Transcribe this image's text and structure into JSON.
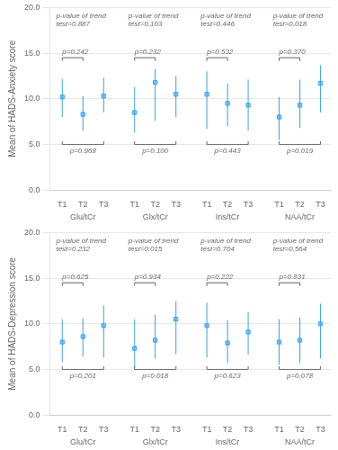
{
  "chart_data": [
    {
      "type": "scatter",
      "ylabel": "Mean of HADS-Anxiety score",
      "ylim": [
        0.0,
        20.0
      ],
      "yticks": [
        {
          "value": 0.0,
          "label": "0.0"
        },
        {
          "value": 5.0,
          "label": "5.0"
        },
        {
          "value": 10.0,
          "label": "10.0"
        },
        {
          "value": 15.0,
          "label": "15.0"
        },
        {
          "value": 20.0,
          "label": "20.0"
        }
      ],
      "grid": true,
      "marker": "square",
      "groups": [
        {
          "label": "Glu/tCr",
          "trend_text": "p-value of trend\ntest=0.887",
          "pval_top": "p=0.242",
          "pval_bottom": "p=0.968",
          "categories": [
            "T1",
            "T2",
            "T3"
          ],
          "values": [
            10.2,
            8.3,
            10.3
          ],
          "yerr_lo": [
            2.2,
            1.8,
            1.8
          ],
          "yerr_hi": [
            2.0,
            2.0,
            2.0
          ]
        },
        {
          "label": "Glx/tCr",
          "trend_text": "p-value of trend\ntest=0.103",
          "pval_top": "p=0.232",
          "pval_bottom": "p=0.100",
          "categories": [
            "T1",
            "T2",
            "T3"
          ],
          "values": [
            8.5,
            11.8,
            10.5
          ],
          "yerr_lo": [
            2.2,
            4.2,
            2.5
          ],
          "yerr_hi": [
            2.8,
            1.5,
            2.0
          ]
        },
        {
          "label": "Ins/tCr",
          "trend_text": "p-value of trend\ntest=0.446",
          "pval_top": "p=0.532",
          "pval_bottom": "p=0.443",
          "categories": [
            "T1",
            "T2",
            "T3"
          ],
          "values": [
            10.5,
            9.5,
            9.3
          ],
          "yerr_lo": [
            3.8,
            2.5,
            2.8
          ],
          "yerr_hi": [
            2.5,
            2.2,
            2.8
          ]
        },
        {
          "label": "NAA/tCr",
          "trend_text": "p-value of trend\ntest=0.018",
          "pval_top": "p=0.370",
          "pval_bottom": "p=0.019",
          "categories": [
            "T1",
            "T2",
            "T3"
          ],
          "values": [
            8.0,
            9.3,
            11.7
          ],
          "yerr_lo": [
            2.5,
            2.5,
            3.2
          ],
          "yerr_hi": [
            2.2,
            2.8,
            2.0
          ]
        }
      ]
    },
    {
      "type": "scatter",
      "ylabel": "Mean of HADS-Depression score",
      "ylim": [
        0.0,
        20.0
      ],
      "yticks": [
        {
          "value": 0.0,
          "label": "0.0"
        },
        {
          "value": 5.0,
          "label": "5.0"
        },
        {
          "value": 10.0,
          "label": "10.0"
        },
        {
          "value": 15.0,
          "label": "15.0"
        },
        {
          "value": 20.0,
          "label": "20.0"
        }
      ],
      "grid": true,
      "marker": "square",
      "groups": [
        {
          "label": "Glu/tCr",
          "trend_text": "p-value of trend\ntest=0.232",
          "pval_top": "p=0.625",
          "pval_bottom": "p=0.201",
          "categories": [
            "T1",
            "T2",
            "T3"
          ],
          "values": [
            8.0,
            8.6,
            9.8
          ],
          "yerr_lo": [
            2.2,
            2.2,
            3.5
          ],
          "yerr_hi": [
            2.5,
            2.0,
            2.2
          ]
        },
        {
          "label": "Glx/tCr",
          "trend_text": "p-value of trend\ntest=0.015",
          "pval_top": "p=0.934",
          "pval_bottom": "p=0.018",
          "categories": [
            "T1",
            "T2",
            "T3"
          ],
          "values": [
            7.3,
            8.2,
            10.5
          ],
          "yerr_lo": [
            2.2,
            2.0,
            3.8
          ],
          "yerr_hi": [
            3.2,
            2.8,
            2.0
          ]
        },
        {
          "label": "Ins/tCr",
          "trend_text": "p-value of trend\ntest=0.704",
          "pval_top": "p=0.222",
          "pval_bottom": "p=0.623",
          "categories": [
            "T1",
            "T2",
            "T3"
          ],
          "values": [
            9.8,
            7.9,
            9.1
          ],
          "yerr_lo": [
            3.5,
            2.2,
            2.5
          ],
          "yerr_hi": [
            2.5,
            2.5,
            2.2
          ]
        },
        {
          "label": "NAA/tCr",
          "trend_text": "p-value of trend\ntest=0.564",
          "pval_top": "p=0.831",
          "pval_bottom": "p=0.078",
          "categories": [
            "T1",
            "T2",
            "T3"
          ],
          "values": [
            8.0,
            8.2,
            10.0
          ],
          "yerr_lo": [
            2.5,
            2.5,
            3.8
          ],
          "yerr_hi": [
            2.5,
            2.5,
            2.2
          ]
        }
      ]
    }
  ]
}
